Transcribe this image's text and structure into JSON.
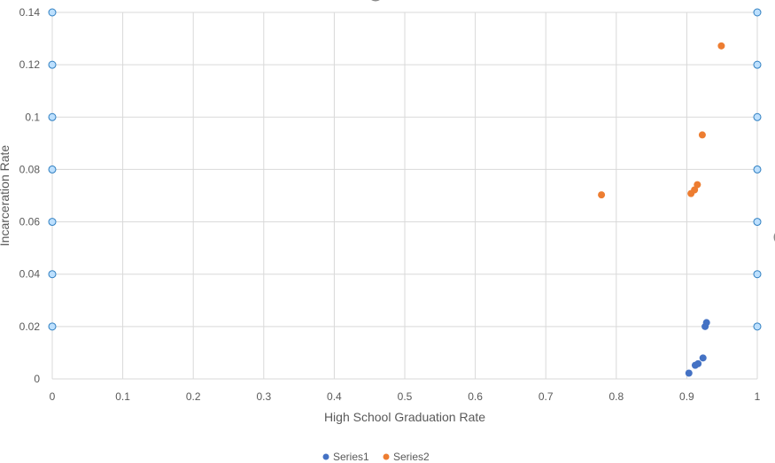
{
  "chart_data": {
    "type": "scatter",
    "title": "",
    "xlabel": "High School Graduation Rate",
    "ylabel": "Incarceration Rate",
    "xlim": [
      0,
      1
    ],
    "ylim": [
      0,
      0.14
    ],
    "x_ticks": [
      "0",
      "0.1",
      "0.2",
      "0.3",
      "0.4",
      "0.5",
      "0.6",
      "0.7",
      "0.8",
      "0.9",
      "1"
    ],
    "y_ticks": [
      "0",
      "0.02",
      "0.04",
      "0.06",
      "0.08",
      "0.1",
      "0.12",
      "0.14"
    ],
    "grid": true,
    "legend_position": "bottom",
    "series": [
      {
        "name": "Series1",
        "color": "#4472c4",
        "points": [
          {
            "x": 0.903,
            "y": 0.0022
          },
          {
            "x": 0.912,
            "y": 0.0052
          },
          {
            "x": 0.916,
            "y": 0.0058
          },
          {
            "x": 0.923,
            "y": 0.008
          },
          {
            "x": 0.926,
            "y": 0.02
          },
          {
            "x": 0.928,
            "y": 0.0215
          }
        ]
      },
      {
        "name": "Series2",
        "color": "#ed7d31",
        "points": [
          {
            "x": 0.779,
            "y": 0.0703
          },
          {
            "x": 0.906,
            "y": 0.0708
          },
          {
            "x": 0.911,
            "y": 0.0722
          },
          {
            "x": 0.915,
            "y": 0.0742
          },
          {
            "x": 0.922,
            "y": 0.0932
          },
          {
            "x": 0.949,
            "y": 0.1272
          }
        ]
      }
    ],
    "selection_handle_color": "#bde0fe",
    "selection_handle_stroke": "#2f7fc1"
  }
}
